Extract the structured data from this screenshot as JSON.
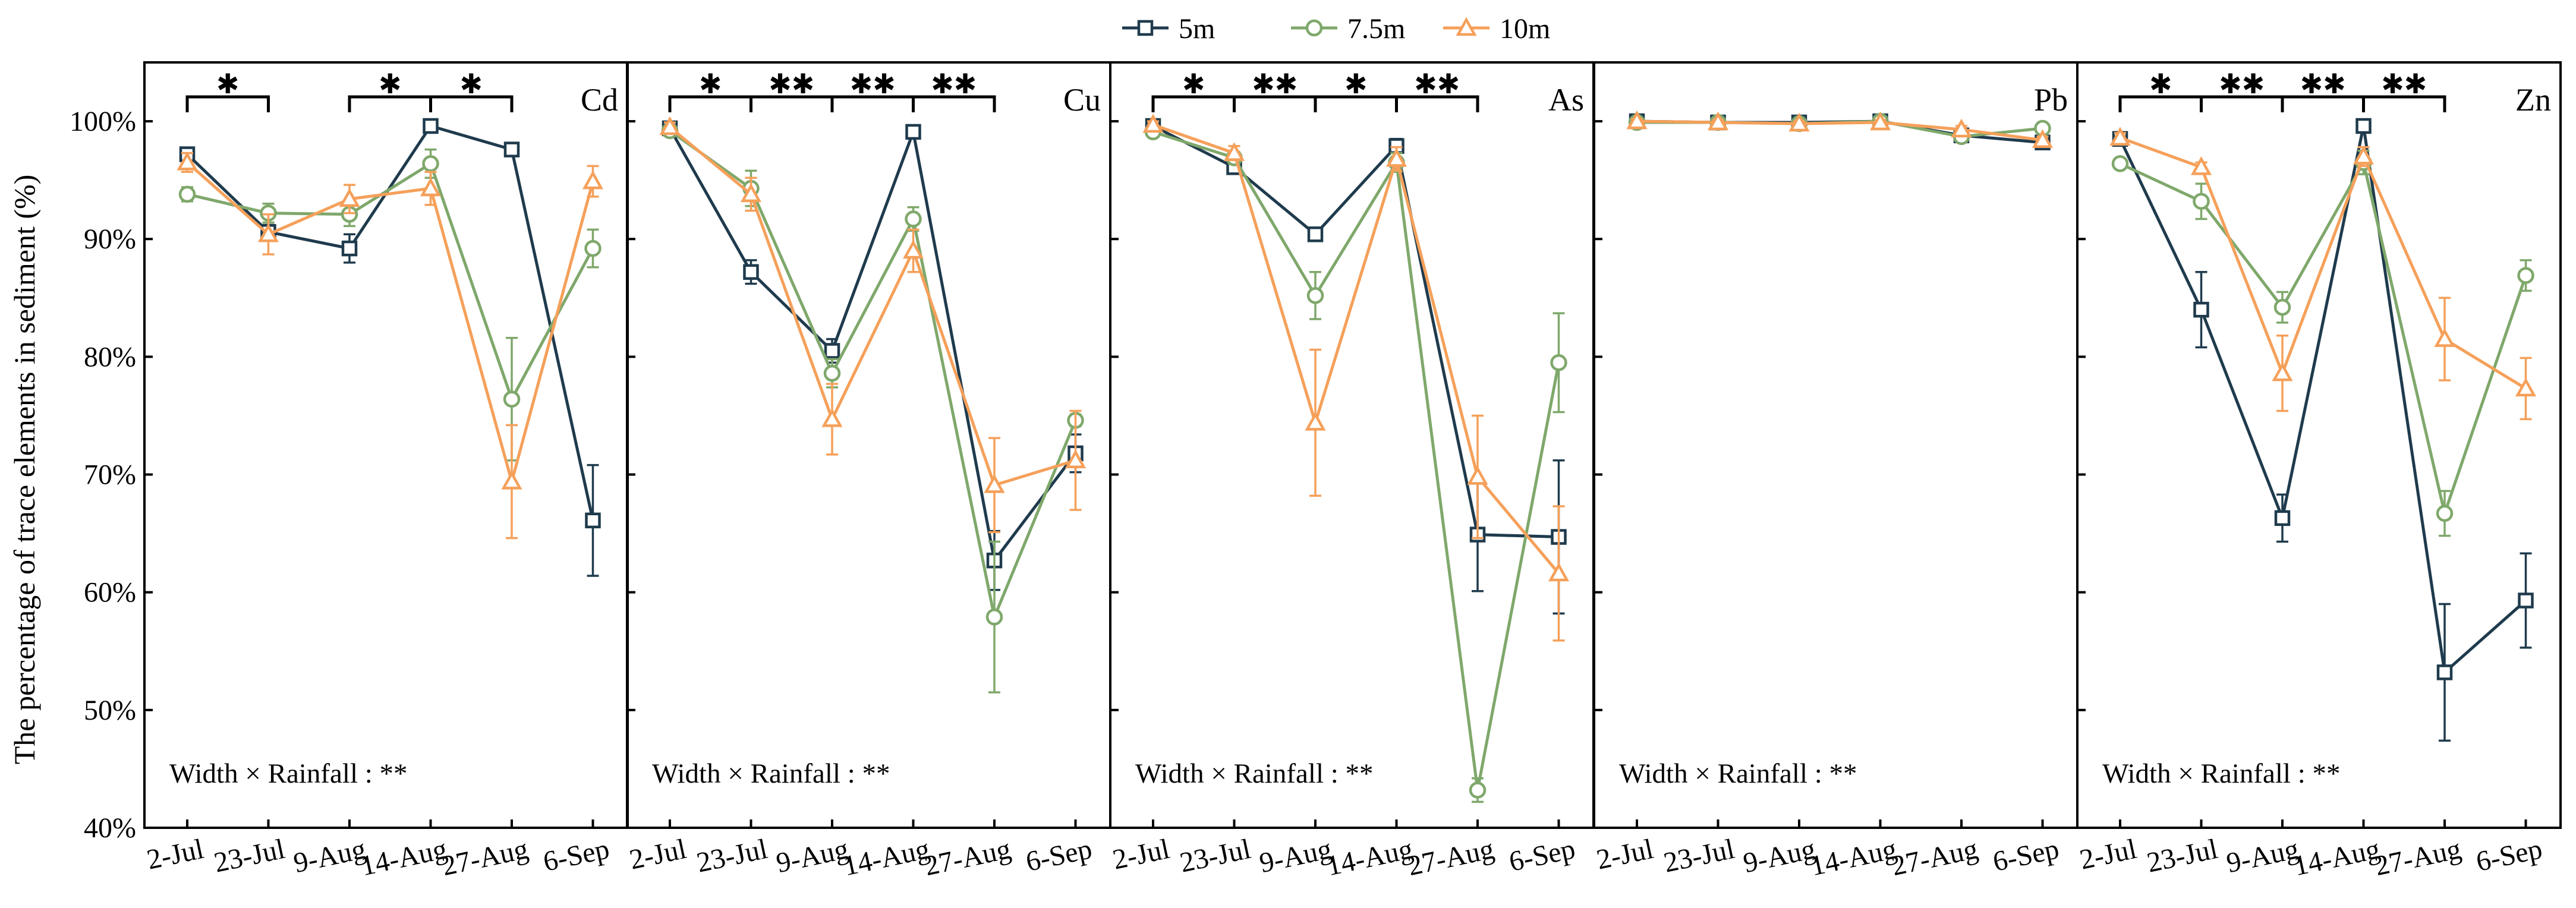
{
  "legend": [
    {
      "label": "5m",
      "color": "#1f3b4d",
      "marker": "square"
    },
    {
      "label": "7.5m",
      "color": "#7fa86b",
      "marker": "circle"
    },
    {
      "label": "10m",
      "color": "#f5a05a",
      "marker": "triangle"
    }
  ],
  "ylabel": "The percentage of trace elements in sediment (%)",
  "chart_data": [
    {
      "type": "line",
      "element": "Cd",
      "categories": [
        "2-Jul",
        "23-Jul",
        "9-Aug",
        "14-Aug",
        "27-Aug",
        "6-Sep"
      ],
      "ylim": [
        40,
        105
      ],
      "yticks": [
        "40%",
        "50%",
        "60%",
        "70%",
        "80%",
        "90%",
        "100%"
      ],
      "series": [
        {
          "name": "5m",
          "values": [
            97.2,
            90.6,
            89.2,
            99.6,
            97.6,
            66.1
          ],
          "errors": [
            0.5,
            0.6,
            1.2,
            0.5,
            0.5,
            4.7
          ]
        },
        {
          "name": "7.5m",
          "values": [
            93.8,
            92.2,
            92.1,
            96.4,
            76.4,
            89.2
          ],
          "errors": [
            0.6,
            0.8,
            1.0,
            1.2,
            5.2,
            1.6
          ]
        },
        {
          "name": "10m",
          "values": [
            96.5,
            90.4,
            93.4,
            94.3,
            69.4,
            94.9
          ],
          "errors": [
            0.8,
            1.7,
            1.2,
            1.4,
            4.8,
            1.3
          ]
        }
      ],
      "significance": [
        {
          "from": 0,
          "to": 1,
          "label": "*"
        },
        {
          "from": 2,
          "to": 3,
          "label": "*"
        },
        {
          "from": 3,
          "to": 4,
          "label": "*"
        }
      ],
      "interaction": "Width × Rainfall : **"
    },
    {
      "type": "line",
      "element": "Cu",
      "categories": [
        "2-Jul",
        "23-Jul",
        "9-Aug",
        "14-Aug",
        "27-Aug",
        "6-Sep"
      ],
      "ylim": [
        40,
        105
      ],
      "series": [
        {
          "name": "5m",
          "values": [
            99.4,
            87.2,
            80.5,
            99.1,
            62.7,
            71.8
          ],
          "errors": [
            0.4,
            1.0,
            1.0,
            0.5,
            2.5,
            1.6
          ]
        },
        {
          "name": "7.5m",
          "values": [
            99.2,
            94.3,
            78.6,
            91.7,
            57.9,
            74.6
          ],
          "errors": [
            0.4,
            1.5,
            1.2,
            1.0,
            6.4,
            0.5
          ]
        },
        {
          "name": "10m",
          "values": [
            99.5,
            93.8,
            74.7,
            89.0,
            69.1,
            71.2
          ],
          "errors": [
            0.4,
            1.4,
            3.0,
            1.8,
            4.0,
            4.2
          ]
        }
      ],
      "significance": [
        {
          "from": 0,
          "to": 1,
          "label": "*"
        },
        {
          "from": 1,
          "to": 2,
          "label": "**"
        },
        {
          "from": 2,
          "to": 3,
          "label": "**"
        },
        {
          "from": 3,
          "to": 4,
          "label": "**"
        }
      ],
      "interaction": "Width × Rainfall : **"
    },
    {
      "type": "line",
      "element": "As",
      "categories": [
        "2-Jul",
        "23-Jul",
        "9-Aug",
        "14-Aug",
        "27-Aug",
        "6-Sep"
      ],
      "ylim": [
        40,
        105
      ],
      "series": [
        {
          "name": "5m",
          "values": [
            99.6,
            96.1,
            90.4,
            97.9,
            64.9,
            64.7
          ],
          "errors": [
            0.3,
            0.5,
            0.5,
            0.6,
            4.8,
            6.5
          ]
        },
        {
          "name": "7.5m",
          "values": [
            99.1,
            96.9,
            85.2,
            96.5,
            43.2,
            79.5
          ],
          "errors": [
            0.4,
            0.5,
            2.0,
            0.8,
            1.0,
            4.2
          ]
        },
        {
          "name": "10m",
          "values": [
            99.7,
            97.3,
            74.4,
            96.8,
            69.8,
            61.6
          ],
          "errors": [
            0.3,
            0.6,
            6.2,
            1.0,
            5.2,
            5.7
          ]
        }
      ],
      "significance": [
        {
          "from": 0,
          "to": 1,
          "label": "*"
        },
        {
          "from": 1,
          "to": 2,
          "label": "**"
        },
        {
          "from": 2,
          "to": 3,
          "label": "*"
        },
        {
          "from": 3,
          "to": 4,
          "label": "**"
        }
      ],
      "interaction": "Width × Rainfall : **"
    },
    {
      "type": "line",
      "element": "Pb",
      "categories": [
        "2-Jul",
        "23-Jul",
        "9-Aug",
        "14-Aug",
        "27-Aug",
        "6-Sep"
      ],
      "ylim": [
        40,
        105
      ],
      "series": [
        {
          "name": "5m",
          "values": [
            100.0,
            99.9,
            99.9,
            100.0,
            98.8,
            98.2
          ],
          "errors": [
            0.2,
            0.2,
            0.2,
            0.2,
            0.3,
            0.3
          ]
        },
        {
          "name": "7.5m",
          "values": [
            99.9,
            99.9,
            99.8,
            100.0,
            98.7,
            99.4
          ],
          "errors": [
            0.2,
            0.2,
            0.2,
            0.2,
            0.3,
            0.3
          ]
        },
        {
          "name": "10m",
          "values": [
            100.0,
            99.9,
            99.8,
            99.9,
            99.3,
            98.4
          ],
          "errors": [
            0.2,
            0.2,
            0.2,
            0.2,
            0.3,
            0.3
          ]
        }
      ],
      "significance": [],
      "interaction": "Width × Rainfall : **"
    },
    {
      "type": "line",
      "element": "Zn",
      "categories": [
        "2-Jul",
        "23-Jul",
        "9-Aug",
        "14-Aug",
        "27-Aug",
        "6-Sep"
      ],
      "ylim": [
        40,
        105
      ],
      "series": [
        {
          "name": "5m",
          "values": [
            98.5,
            84.0,
            66.3,
            99.6,
            53.2,
            59.3
          ],
          "errors": [
            0.4,
            3.2,
            2.0,
            0.5,
            5.8,
            4.0
          ]
        },
        {
          "name": "7.5m",
          "values": [
            96.4,
            93.2,
            84.2,
            96.5,
            66.7,
            86.9
          ],
          "errors": [
            0.4,
            1.5,
            1.3,
            1.0,
            1.9,
            1.3
          ]
        },
        {
          "name": "10m",
          "values": [
            98.6,
            96.1,
            78.6,
            97.0,
            81.5,
            77.3
          ],
          "errors": [
            0.4,
            0.4,
            3.2,
            0.8,
            3.5,
            2.6
          ]
        }
      ],
      "significance": [
        {
          "from": 0,
          "to": 1,
          "label": "*"
        },
        {
          "from": 1,
          "to": 2,
          "label": "**"
        },
        {
          "from": 2,
          "to": 3,
          "label": "**"
        },
        {
          "from": 3,
          "to": 4,
          "label": "**"
        }
      ],
      "interaction": "Width × Rainfall : **"
    }
  ]
}
